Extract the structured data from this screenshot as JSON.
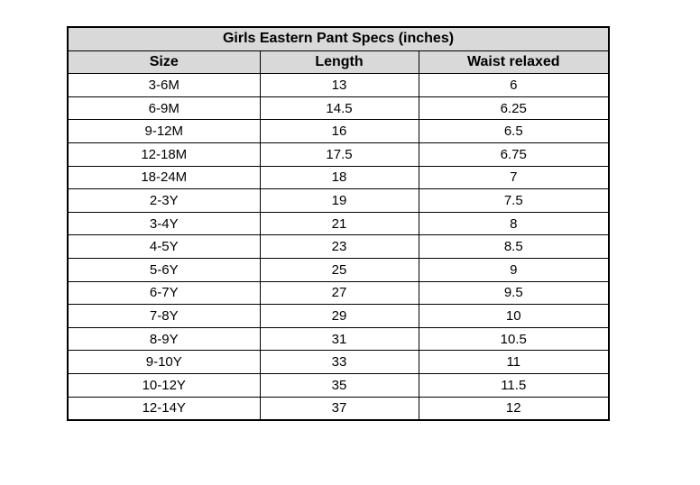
{
  "chart_data": {
    "type": "table",
    "title": "Girls Eastern Pant Specs (inches)",
    "columns": [
      "Size",
      "Length",
      "Waist relaxed"
    ],
    "rows": [
      [
        "3-6M",
        "13",
        "6"
      ],
      [
        "6-9M",
        "14.5",
        "6.25"
      ],
      [
        "9-12M",
        "16",
        "6.5"
      ],
      [
        "12-18M",
        "17.5",
        "6.75"
      ],
      [
        "18-24M",
        "18",
        "7"
      ],
      [
        "2-3Y",
        "19",
        "7.5"
      ],
      [
        "3-4Y",
        "21",
        "8"
      ],
      [
        "4-5Y",
        "23",
        "8.5"
      ],
      [
        "5-6Y",
        "25",
        "9"
      ],
      [
        "6-7Y",
        "27",
        "9.5"
      ],
      [
        "7-8Y",
        "29",
        "10"
      ],
      [
        "8-9Y",
        "31",
        "10.5"
      ],
      [
        "9-10Y",
        "33",
        "11"
      ],
      [
        "10-12Y",
        "35",
        "11.5"
      ],
      [
        "12-14Y",
        "37",
        "12"
      ]
    ],
    "units": "inches",
    "layout_hints": {
      "grid": true,
      "header_fill": true,
      "title_row_spans_all_columns": true
    }
  },
  "colors": {
    "header_bg": "#d9d9d9",
    "border": "#000000",
    "cell_bg": "#ffffff",
    "text": "#000000",
    "page_bg": "#ffffff"
  }
}
